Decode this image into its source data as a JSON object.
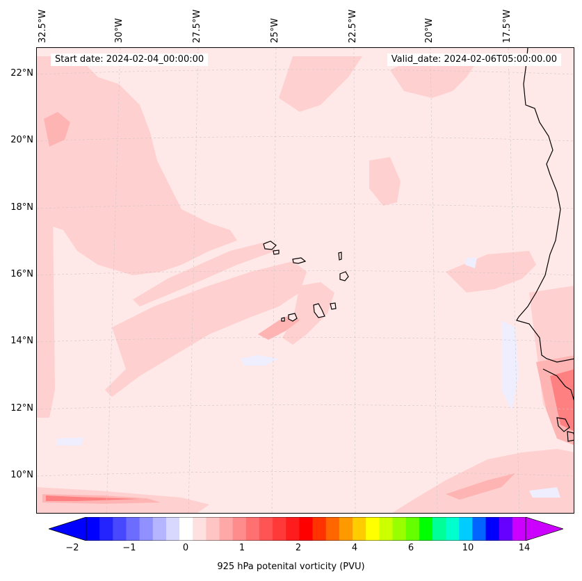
{
  "header": {
    "start_date": "Start date: 2024-02-04_00:00:00",
    "valid_date": "Valid_date: 2024-02-06T05:00:00.00"
  },
  "lon_labels": [
    "32.5°W",
    "30°W",
    "27.5°W",
    "25°W",
    "22.5°W",
    "20°W",
    "17.5°W"
  ],
  "lat_labels": [
    "22°N",
    "20°N",
    "18°N",
    "16°N",
    "14°N",
    "12°N",
    "10°N"
  ],
  "colorbar": {
    "label": "925 hPa potenital vorticity (PVU)",
    "ticks": [
      "−2",
      "−1",
      "0",
      "1",
      "2",
      "4",
      "6",
      "10",
      "14"
    ],
    "colors": [
      "#0000ff",
      "#2424ff",
      "#4848ff",
      "#6c6cff",
      "#9090ff",
      "#b4b4ff",
      "#d8d8ff",
      "#ffffff",
      "#ffe0e0",
      "#ffc4c4",
      "#ffa8a8",
      "#ff8c8c",
      "#ff7070",
      "#ff5454",
      "#ff3838",
      "#ff1c1c",
      "#ff0000",
      "#ff3300",
      "#ff6600",
      "#ff9900",
      "#ffcc00",
      "#ffff00",
      "#ccff00",
      "#99ff00",
      "#66ff00",
      "#00ff00",
      "#00ff99",
      "#00ffcc",
      "#00ccff",
      "#0066ff",
      "#0000ff",
      "#6600ff",
      "#cc00ff"
    ],
    "under_color": "#0000ff",
    "over_color": "#cc00ff"
  },
  "colors": {
    "background": "#ffe8e8",
    "light_pink": "#ffd0d0",
    "medium_pink": "#ffb4b4",
    "strong_pink": "#ff8080",
    "light_blue": "#eeeeff",
    "gridline": "#c8c8c8",
    "coast": "#000000"
  }
}
